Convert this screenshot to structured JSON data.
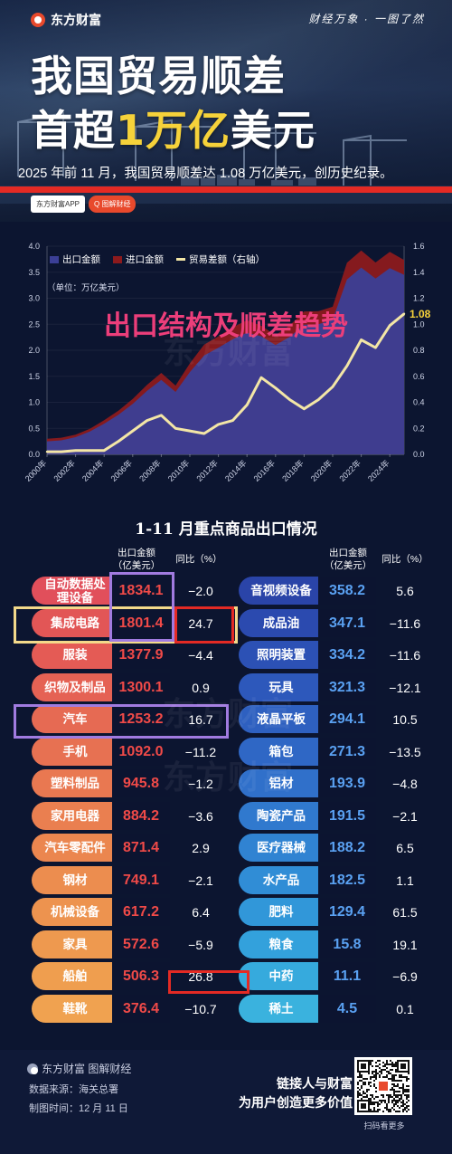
{
  "header": {
    "brand": "东方财富",
    "slogan": "财经万象 · 一图了然",
    "title_line1": "我国贸易顺差",
    "title_line2_pre": "首超",
    "title_line2_hl": "1万亿",
    "title_line2_post": "美元",
    "subtitle": "2025 年前 11 月，我国贸易顺差达 1.08 万亿美元，创历史纪录。",
    "tag_app": "东方财富APP",
    "tag_search": "Q 图解财经"
  },
  "chart_data": {
    "type": "area",
    "title": "出口结构及顺差趋势",
    "unit_label": "（单位：万亿美元）",
    "x_tick_labels": [
      "2000年",
      "2002年",
      "2004年",
      "2006年",
      "2008年",
      "2010年",
      "2012年",
      "2014年",
      "2016年",
      "2018年",
      "2020年",
      "2022年",
      "2024年"
    ],
    "x": [
      2000,
      2001,
      2002,
      2003,
      2004,
      2005,
      2006,
      2007,
      2008,
      2009,
      2010,
      2011,
      2012,
      2013,
      2014,
      2015,
      2016,
      2017,
      2018,
      2019,
      2020,
      2021,
      2022,
      2023,
      2024,
      2025
    ],
    "ylim_left": [
      0,
      4.0
    ],
    "ylim_right": [
      0,
      1.6
    ],
    "y_ticks_left": [
      "0.0",
      "0.5",
      "1.0",
      "1.5",
      "2.0",
      "2.5",
      "3.0",
      "3.5",
      "4.0"
    ],
    "y_ticks_right": [
      "0.0",
      "0.2",
      "0.4",
      "0.6",
      "0.8",
      "1.0",
      "1.2",
      "1.4",
      "1.6"
    ],
    "series": [
      {
        "name": "出口金额",
        "axis": "left",
        "color": "#3b3f96",
        "values": [
          0.25,
          0.27,
          0.33,
          0.44,
          0.59,
          0.76,
          0.97,
          1.22,
          1.43,
          1.2,
          1.58,
          1.9,
          2.05,
          2.21,
          2.34,
          2.27,
          2.1,
          2.26,
          2.49,
          2.5,
          2.59,
          3.36,
          3.59,
          3.38,
          3.58,
          3.45
        ]
      },
      {
        "name": "进口金额",
        "axis": "left",
        "color": "#8c1a1d",
        "values": [
          0.23,
          0.24,
          0.3,
          0.41,
          0.56,
          0.66,
          0.79,
          0.96,
          1.13,
          1.01,
          1.4,
          1.74,
          1.82,
          1.95,
          1.96,
          1.68,
          1.59,
          1.84,
          2.14,
          2.08,
          2.06,
          2.68,
          2.72,
          2.56,
          2.59,
          2.37
        ]
      },
      {
        "name": "贸易差额（右轴）",
        "axis": "right",
        "color": "#f3e6a6",
        "values": [
          0.02,
          0.02,
          0.03,
          0.03,
          0.03,
          0.1,
          0.18,
          0.26,
          0.3,
          0.2,
          0.18,
          0.16,
          0.23,
          0.26,
          0.38,
          0.59,
          0.51,
          0.42,
          0.35,
          0.42,
          0.52,
          0.68,
          0.88,
          0.82,
          0.99,
          1.08
        ]
      }
    ],
    "end_label": "1.08",
    "legend_position": "top-left"
  },
  "table": {
    "title": "1-11 月重点商品出口情况",
    "header_value": "出口金额（亿美元）",
    "header_value_l1": "出口金额",
    "header_value_l2": "（亿美元）",
    "header_pct": "同比（%）",
    "left": [
      {
        "name": "自动数据处理设备",
        "value": "1834.1",
        "pct": "−2.0"
      },
      {
        "name": "集成电路",
        "value": "1801.4",
        "pct": "24.7"
      },
      {
        "name": "服装",
        "value": "1377.9",
        "pct": "−4.4"
      },
      {
        "name": "织物及制品",
        "value": "1300.1",
        "pct": "0.9"
      },
      {
        "name": "汽车",
        "value": "1253.2",
        "pct": "16.7"
      },
      {
        "name": "手机",
        "value": "1092.0",
        "pct": "−11.2"
      },
      {
        "name": "塑料制品",
        "value": "945.8",
        "pct": "−1.2"
      },
      {
        "name": "家用电器",
        "value": "884.2",
        "pct": "−3.6"
      },
      {
        "name": "汽车零配件",
        "value": "871.4",
        "pct": "2.9"
      },
      {
        "name": "钢材",
        "value": "749.1",
        "pct": "−2.1"
      },
      {
        "name": "机械设备",
        "value": "617.2",
        "pct": "6.4"
      },
      {
        "name": "家具",
        "value": "572.6",
        "pct": "−5.9"
      },
      {
        "name": "船舶",
        "value": "506.3",
        "pct": "26.8"
      },
      {
        "name": "鞋靴",
        "value": "376.4",
        "pct": "−10.7"
      }
    ],
    "right": [
      {
        "name": "音视频设备",
        "value": "358.2",
        "pct": "5.6"
      },
      {
        "name": "成品油",
        "value": "347.1",
        "pct": "−11.6"
      },
      {
        "name": "照明装置",
        "value": "334.2",
        "pct": "−11.6"
      },
      {
        "name": "玩具",
        "value": "321.3",
        "pct": "−12.1"
      },
      {
        "name": "液晶平板",
        "value": "294.1",
        "pct": "10.5"
      },
      {
        "name": "箱包",
        "value": "271.3",
        "pct": "−13.5"
      },
      {
        "name": "铝材",
        "value": "193.9",
        "pct": "−4.8"
      },
      {
        "name": "陶瓷产品",
        "value": "191.5",
        "pct": "−2.1"
      },
      {
        "name": "医疗器械",
        "value": "188.2",
        "pct": "6.5"
      },
      {
        "name": "水产品",
        "value": "182.5",
        "pct": "1.1"
      },
      {
        "name": "肥料",
        "value": "129.4",
        "pct": "61.5"
      },
      {
        "name": "粮食",
        "value": "15.8",
        "pct": "19.1"
      },
      {
        "name": "中药",
        "value": "11.1",
        "pct": "−6.9"
      },
      {
        "name": "稀土",
        "value": "4.5",
        "pct": "0.1"
      }
    ]
  },
  "footer": {
    "brand": "东方财富 图解财经",
    "source": "数据来源：海关总署",
    "time": "制图时间：12 月 11 日",
    "slogan1": "链接人与财富",
    "slogan2": "为用户创造更多价值",
    "qr_caption": "扫码看更多"
  },
  "watermark": "东方财富",
  "colors": {
    "background": "#0c1530",
    "export_area": "#3b3f96",
    "import_area": "#8c1a1d",
    "balance_line": "#f3e6a6",
    "chart_title": "#ec3e7a",
    "left_value": "#f04a48",
    "right_value": "#5aa1f2",
    "highlight_yellow": "#f3d98a",
    "highlight_purple": "#a17be0",
    "highlight_red": "#e42a24"
  },
  "icons": {
    "brand_logo": "brand-logo-icon",
    "qr": "qr-code-icon"
  }
}
